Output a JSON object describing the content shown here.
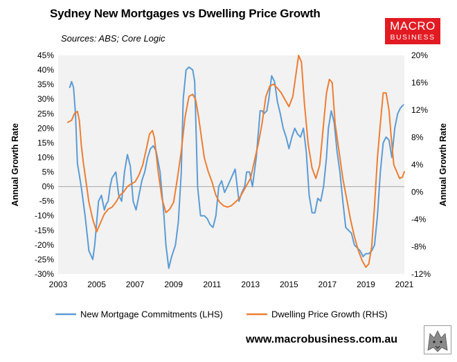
{
  "header": {
    "title": "Sydney New Mortgages vs Dwelling Price Growth",
    "subtitle": "Sources: ABS; Core Logic"
  },
  "logo": {
    "line1": "MACRO",
    "line2": "BUSINESS"
  },
  "footer": {
    "website": "www.macrobusiness.com.au"
  },
  "colors": {
    "mortgage": "#5b9bd5",
    "price": "#ed7d31",
    "plot_bg": "#f2f2f2",
    "logo_bg": "#e21b23"
  },
  "chart_data": {
    "type": "line",
    "title": "Sydney New Mortgages vs Dwelling Price Growth",
    "y_left_label": "Annual Growth Rate",
    "y_right_label": "Annual Growth Rate",
    "x_range": [
      2003,
      2021
    ],
    "x_ticks": [
      "2003",
      "2005",
      "2007",
      "2009",
      "2011",
      "2013",
      "2015",
      "2017",
      "2019",
      "2021"
    ],
    "y_left_range": [
      -30,
      45
    ],
    "y_left_ticks": [
      "-30%",
      "-25%",
      "-20%",
      "-15%",
      "-10%",
      "-5%",
      "0%",
      "5%",
      "10%",
      "15%",
      "20%",
      "25%",
      "30%",
      "35%",
      "40%",
      "45%"
    ],
    "y_right_range": [
      -12,
      20
    ],
    "y_right_ticks": [
      "-12%",
      "-8%",
      "-4%",
      "0%",
      "4%",
      "8%",
      "12%",
      "16%",
      "20%"
    ],
    "grid": false,
    "legend_position": "bottom",
    "series": [
      {
        "name": "New Mortgage Commitments (LHS)",
        "axis": "left",
        "x": [
          2003.6,
          2003.7,
          2003.8,
          2003.9,
          2004.0,
          2004.2,
          2004.4,
          2004.6,
          2004.8,
          2004.9,
          2005.1,
          2005.25,
          2005.4,
          2005.5,
          2005.6,
          2005.7,
          2005.8,
          2006.0,
          2006.15,
          2006.3,
          2006.45,
          2006.6,
          2006.75,
          2006.9,
          2007.05,
          2007.2,
          2007.35,
          2007.5,
          2007.65,
          2007.8,
          2007.95,
          2008.1,
          2008.3,
          2008.5,
          2008.6,
          2008.75,
          2008.9,
          2009.1,
          2009.25,
          2009.4,
          2009.5,
          2009.65,
          2009.8,
          2010.0,
          2010.1,
          2010.25,
          2010.4,
          2010.6,
          2010.75,
          2010.9,
          2011.05,
          2011.2,
          2011.35,
          2011.5,
          2011.65,
          2011.8,
          2012.0,
          2012.2,
          2012.4,
          2012.55,
          2012.7,
          2012.8,
          2012.95,
          2013.1,
          2013.3,
          2013.5,
          2013.6,
          2013.7,
          2013.85,
          2013.95,
          2014.1,
          2014.25,
          2014.4,
          2014.55,
          2014.7,
          2014.85,
          2015.0,
          2015.15,
          2015.3,
          2015.45,
          2015.6,
          2015.75,
          2015.9,
          2016.05,
          2016.2,
          2016.35,
          2016.5,
          2016.65,
          2016.8,
          2016.95,
          2017.05,
          2017.2,
          2017.35,
          2017.5,
          2017.65,
          2017.8,
          2017.95,
          2018.1,
          2018.25,
          2018.4,
          2018.55,
          2018.7,
          2018.85,
          2019.0,
          2019.15,
          2019.3,
          2019.45,
          2019.6,
          2019.75,
          2019.9,
          2020.05,
          2020.2,
          2020.35,
          2020.5,
          2020.65,
          2020.8,
          2020.95
        ],
        "values": [
          34,
          36,
          34,
          25,
          8,
          0,
          -10,
          -22,
          -25,
          -20,
          -5,
          -3,
          -8,
          -6,
          -5,
          0,
          3,
          5,
          -3,
          -5,
          5,
          11,
          7,
          -5,
          -8,
          -3,
          2,
          5,
          10,
          13,
          14,
          12,
          5,
          -10,
          -20,
          -28,
          -24,
          -20,
          -12,
          5,
          30,
          40,
          41,
          40,
          36,
          0,
          -10,
          -10,
          -11,
          -13,
          -14,
          -10,
          0,
          2,
          -2,
          0,
          3,
          6,
          -5,
          -2,
          0,
          5,
          5,
          0,
          10,
          26,
          26,
          25,
          26,
          30,
          38,
          36,
          29,
          25,
          20,
          17,
          13,
          17,
          20,
          18,
          17,
          20,
          12,
          -3,
          -9,
          -9,
          -4,
          -5,
          0,
          10,
          20,
          26,
          22,
          12,
          5,
          -5,
          -14,
          -15,
          -16,
          -20,
          -21,
          -22,
          -24,
          -23,
          -23,
          -22,
          -20,
          -10,
          5,
          15,
          17,
          16,
          10,
          20,
          25,
          27,
          28
        ]
      },
      {
        "name": "Dwelling Price Growth (RHS)",
        "axis": "right",
        "x": [
          2003.5,
          2003.7,
          2003.85,
          2004.0,
          2004.1,
          2004.2,
          2004.3,
          2004.45,
          2004.6,
          2004.8,
          2005.0,
          2005.2,
          2005.4,
          2005.6,
          2005.8,
          2006.0,
          2006.2,
          2006.4,
          2006.6,
          2006.8,
          2007.0,
          2007.2,
          2007.4,
          2007.6,
          2007.75,
          2007.9,
          2008.0,
          2008.2,
          2008.4,
          2008.6,
          2008.8,
          2009.0,
          2009.2,
          2009.4,
          2009.6,
          2009.8,
          2010.0,
          2010.15,
          2010.3,
          2010.45,
          2010.6,
          2010.8,
          2011.0,
          2011.2,
          2011.4,
          2011.6,
          2011.8,
          2012.0,
          2012.2,
          2012.4,
          2012.6,
          2012.8,
          2013.0,
          2013.2,
          2013.4,
          2013.6,
          2013.8,
          2014.0,
          2014.2,
          2014.4,
          2014.6,
          2014.8,
          2015.0,
          2015.2,
          2015.35,
          2015.5,
          2015.65,
          2015.8,
          2016.0,
          2016.2,
          2016.4,
          2016.6,
          2016.8,
          2016.95,
          2017.1,
          2017.25,
          2017.4,
          2017.6,
          2017.8,
          2018.0,
          2018.2,
          2018.4,
          2018.6,
          2018.8,
          2019.0,
          2019.15,
          2019.3,
          2019.45,
          2019.6,
          2019.75,
          2019.9,
          2020.05,
          2020.2,
          2020.3,
          2020.45,
          2020.6,
          2020.75,
          2020.9,
          2021.0
        ],
        "values": [
          10.2,
          10.5,
          11.5,
          11.8,
          10.5,
          7,
          4.5,
          1.5,
          -1.5,
          -4,
          -5.8,
          -4.5,
          -3.2,
          -2.5,
          -2.2,
          -1.5,
          -0.5,
          0,
          0.8,
          1.2,
          1.5,
          2.5,
          4,
          6.5,
          8.5,
          9,
          8,
          3,
          -1,
          -3,
          -2.5,
          -1.5,
          2,
          6,
          11,
          14,
          14.3,
          13.5,
          11,
          8,
          5,
          3,
          1.5,
          -0.5,
          -1.5,
          -2,
          -2.2,
          -2,
          -1.5,
          -1,
          0,
          1,
          2,
          4.5,
          7,
          10,
          14,
          15.5,
          15.8,
          15.2,
          14.5,
          13.5,
          12.5,
          14,
          17,
          20,
          19,
          13,
          7,
          3.5,
          2,
          4,
          10,
          14.5,
          16.5,
          16,
          10,
          6,
          2,
          -1,
          -4,
          -6.5,
          -8.5,
          -10,
          -11,
          -10.5,
          -8,
          -2,
          5,
          10,
          14.5,
          14.5,
          12,
          8.5,
          4,
          3,
          2,
          2.2,
          3
        ]
      }
    ]
  }
}
